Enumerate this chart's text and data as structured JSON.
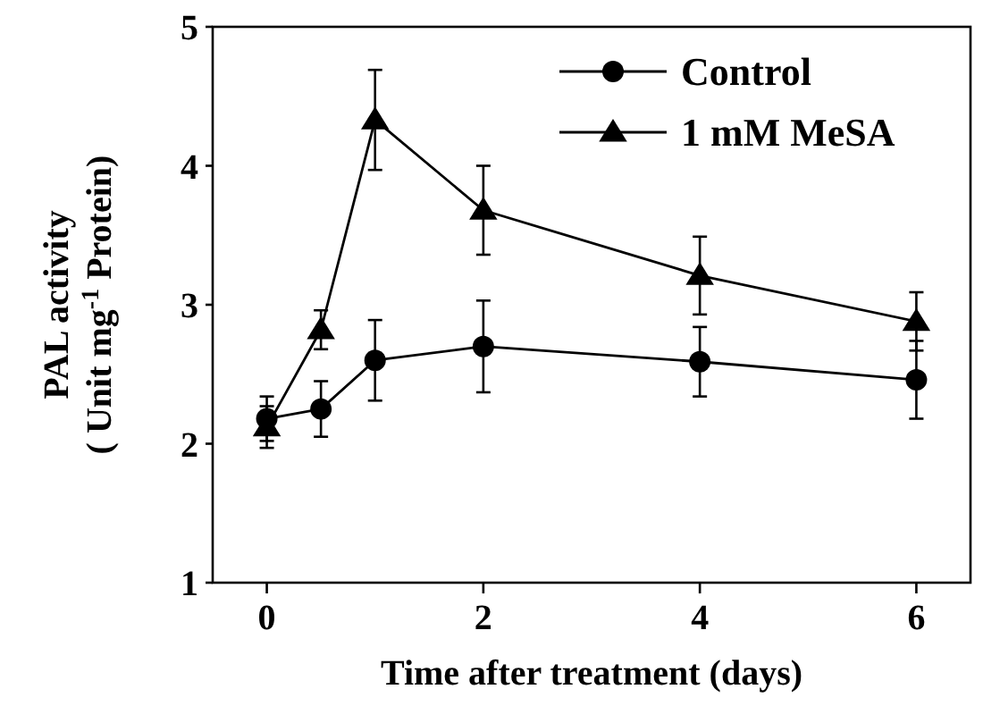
{
  "chart_data": {
    "type": "line",
    "xlabel": "Time after treatment (days)",
    "ylabel": "PAL activity\n( Unit mg$^{-1}$ Protein)",
    "x": [
      0,
      0.5,
      1,
      2,
      4,
      6
    ],
    "xlim": [
      -0.5,
      6.5
    ],
    "xticks": [
      0,
      2,
      4,
      6
    ],
    "ylim": [
      1,
      5
    ],
    "yticks": [
      1,
      2,
      3,
      4,
      5
    ],
    "series": [
      {
        "name": "Control",
        "color": "#000000",
        "marker": "circle",
        "values": [
          2.18,
          2.25,
          2.6,
          2.7,
          2.59,
          2.46
        ],
        "errors": [
          0.16,
          0.2,
          0.29,
          0.33,
          0.25,
          0.28
        ]
      },
      {
        "name": "1 mM MeSA",
        "color": "#000000",
        "marker": "triangle",
        "values": [
          2.12,
          2.82,
          4.33,
          3.68,
          3.21,
          2.88
        ],
        "errors": [
          0.15,
          0.14,
          0.36,
          0.32,
          0.28,
          0.21
        ]
      }
    ],
    "grid": false,
    "legend": "top right",
    "line_style": "solid"
  }
}
